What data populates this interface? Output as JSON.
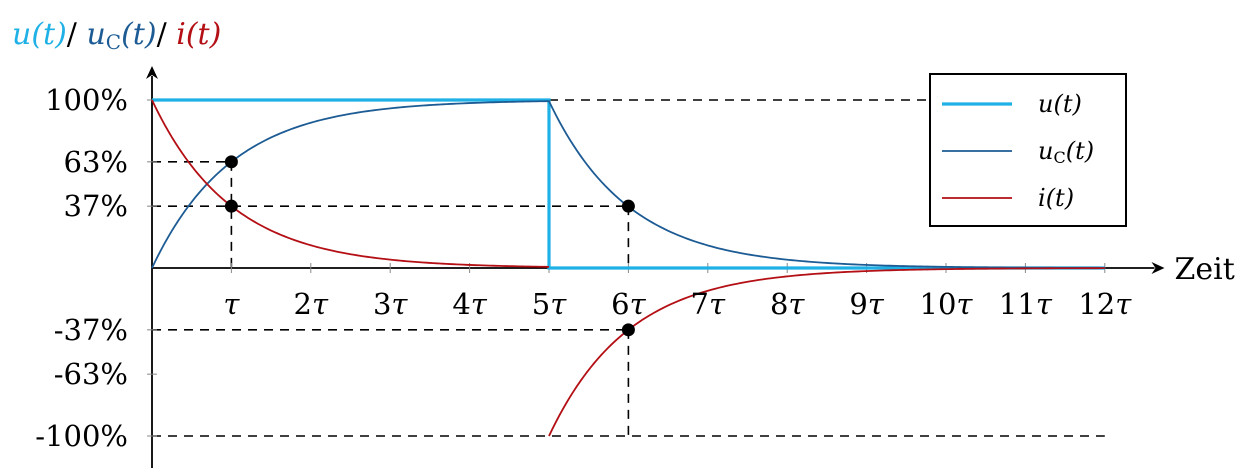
{
  "chart_data": {
    "type": "line",
    "title": {
      "parts": [
        {
          "text": "u(t)",
          "color": "#1fb1e6"
        },
        {
          "text": "/ ",
          "color": "#000000"
        },
        {
          "text": "u",
          "color": "#1c5b94",
          "sub": "C",
          "suffix": "(t)"
        },
        {
          "text": "/ ",
          "color": "#000000"
        },
        {
          "text": "i(t)",
          "color": "#b30f14"
        }
      ]
    },
    "xlabel": "Zeit",
    "x_unit": "τ",
    "xlim": [
      0,
      12.5
    ],
    "ylim": [
      -1.1,
      1.1
    ],
    "x_ticks": [
      {
        "value": 1,
        "label": "τ"
      },
      {
        "value": 2,
        "label": "2τ"
      },
      {
        "value": 3,
        "label": "3τ"
      },
      {
        "value": 4,
        "label": "4τ"
      },
      {
        "value": 5,
        "label": "5τ"
      },
      {
        "value": 6,
        "label": "6τ"
      },
      {
        "value": 7,
        "label": "7τ"
      },
      {
        "value": 8,
        "label": "8τ"
      },
      {
        "value": 9,
        "label": "9τ"
      },
      {
        "value": 10,
        "label": "10τ"
      },
      {
        "value": 11,
        "label": "11τ"
      },
      {
        "value": 12,
        "label": "12τ"
      }
    ],
    "y_ticks": [
      {
        "value": 1.0,
        "label": "100%"
      },
      {
        "value": 0.632,
        "label": "63%"
      },
      {
        "value": 0.368,
        "label": "37%"
      },
      {
        "value": -0.368,
        "label": "-37%"
      },
      {
        "value": -0.632,
        "label": "-63%"
      },
      {
        "value": -1.0,
        "label": "-100%"
      }
    ],
    "series": [
      {
        "name": "u(t)",
        "legend_label": {
          "base": "u",
          "sub": "",
          "suffix": "(t)"
        },
        "color": "#1fb1e6",
        "width": 3.2,
        "points": [
          [
            0,
            1
          ],
          [
            5,
            1
          ],
          [
            5,
            0
          ],
          [
            12,
            0
          ]
        ]
      },
      {
        "name": "uC(t)",
        "legend_label": {
          "base": "u",
          "sub": "C",
          "suffix": "(t)"
        },
        "color": "#1c5b94",
        "width": 1.8,
        "function": "charge-discharge",
        "points": [
          [
            0,
            0
          ],
          [
            1,
            0.632
          ],
          [
            2,
            0.865
          ],
          [
            3,
            0.95
          ],
          [
            4,
            0.982
          ],
          [
            5,
            0.993
          ],
          [
            6,
            0.365
          ],
          [
            7,
            0.134
          ],
          [
            8,
            0.049
          ],
          [
            9,
            0.018
          ],
          [
            10,
            0.007
          ],
          [
            12,
            0.001
          ]
        ]
      },
      {
        "name": "i(t)",
        "legend_label": {
          "base": "i",
          "sub": "",
          "suffix": "(t)"
        },
        "color": "#b30f14",
        "width": 1.8,
        "function": "current",
        "points": [
          [
            0,
            1
          ],
          [
            1,
            0.368
          ],
          [
            2,
            0.135
          ],
          [
            3,
            0.05
          ],
          [
            4,
            0.018
          ],
          [
            5,
            0.007
          ],
          [
            5,
            -1
          ],
          [
            6,
            -0.368
          ],
          [
            7,
            -0.135
          ],
          [
            8,
            -0.05
          ],
          [
            9,
            -0.018
          ],
          [
            10,
            -0.007
          ],
          [
            12,
            -0.001
          ]
        ]
      }
    ],
    "markers": [
      {
        "x": 1,
        "y": 0.632
      },
      {
        "x": 1,
        "y": 0.368
      },
      {
        "x": 6,
        "y": 0.368
      },
      {
        "x": 6,
        "y": -0.368
      }
    ],
    "reference_lines": [
      {
        "from": [
          0,
          0.632
        ],
        "to": [
          1,
          0.632
        ]
      },
      {
        "from": [
          0,
          0.368
        ],
        "to": [
          6,
          0.368
        ]
      },
      {
        "from": [
          1,
          0.632
        ],
        "to": [
          1,
          0
        ]
      },
      {
        "from": [
          6,
          0.368
        ],
        "to": [
          6,
          0
        ]
      },
      {
        "from": [
          5,
          1
        ],
        "to": [
          12,
          1
        ]
      },
      {
        "from": [
          0,
          -0.368
        ],
        "to": [
          6,
          -0.368
        ]
      },
      {
        "from": [
          0,
          -1
        ],
        "to": [
          12,
          -1
        ]
      },
      {
        "from": [
          6,
          -0.368
        ],
        "to": [
          6,
          -1
        ]
      }
    ],
    "legend": {
      "position": "top-right"
    },
    "grid": false
  }
}
